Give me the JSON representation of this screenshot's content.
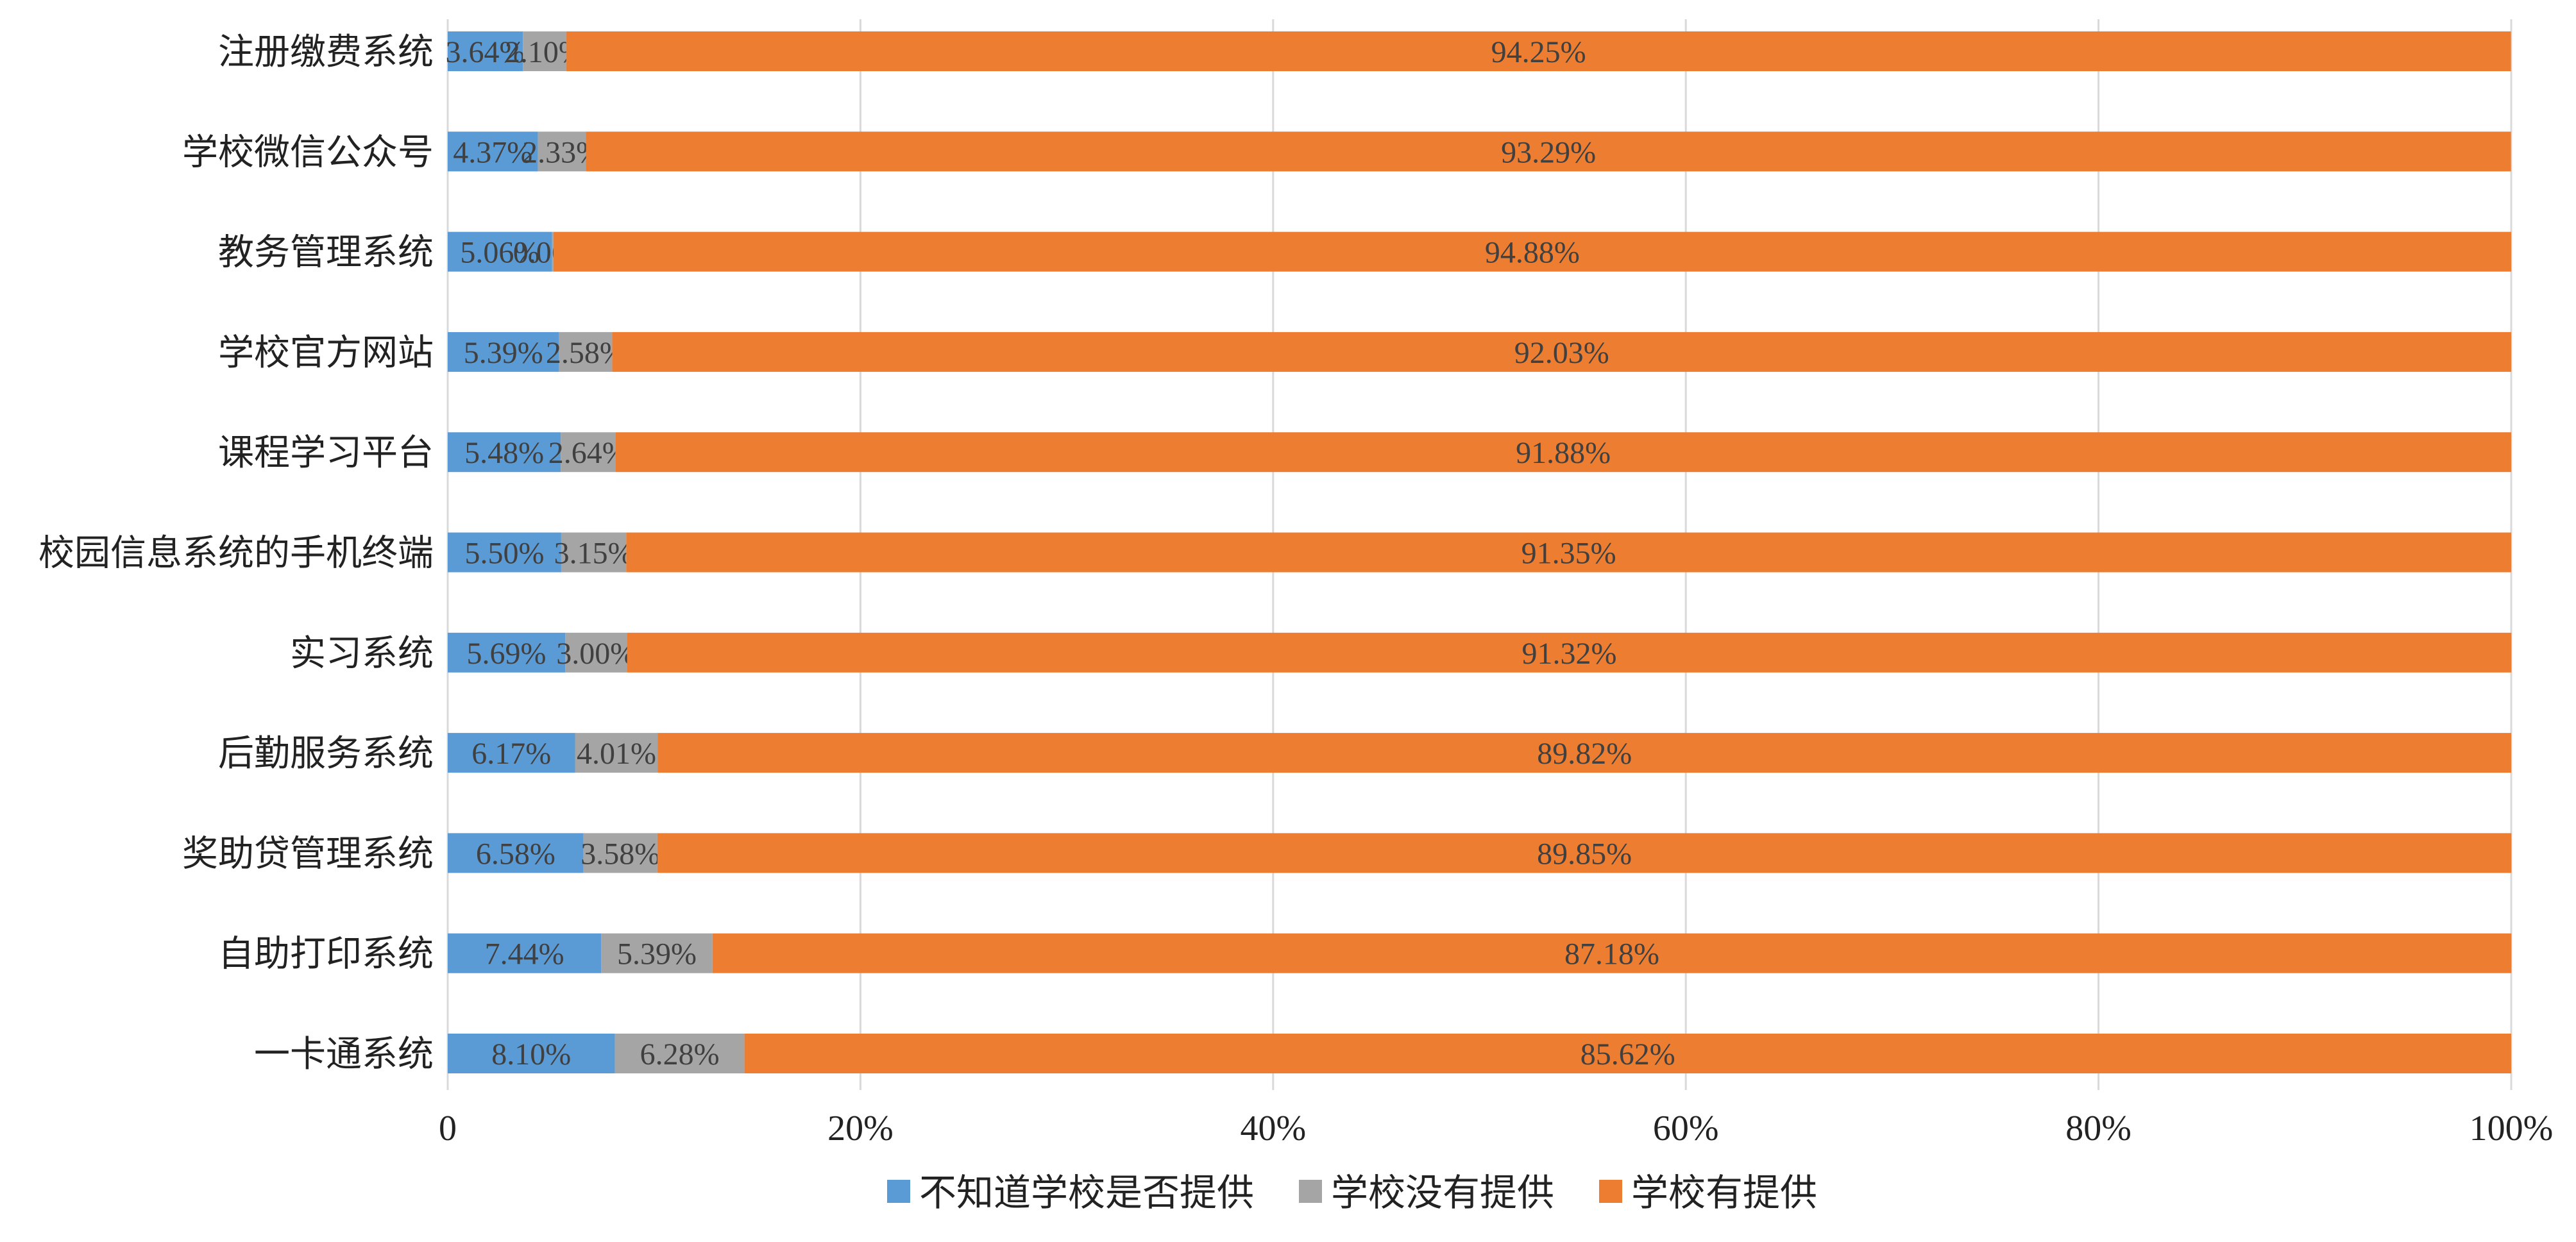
{
  "chart_data": {
    "type": "bar",
    "orientation": "horizontal",
    "stacked": true,
    "title": "",
    "xlabel": "",
    "ylabel": "",
    "xlim": [
      0,
      100
    ],
    "x_ticks": [
      0,
      20,
      40,
      60,
      80,
      100
    ],
    "x_tick_labels": [
      "0",
      "20%",
      "40%",
      "60%",
      "80%",
      "100%"
    ],
    "grid": "vertical",
    "legend": "bottom",
    "categories": [
      "注册缴费系统",
      "学校微信公众号",
      "教务管理系统",
      "学校官方网站",
      "课程学习平台",
      "校园信息系统的手机终端",
      "实习系统",
      "后勤服务系统",
      "奖助贷管理系统",
      "自助打印系统",
      "一卡通系统"
    ],
    "series": [
      {
        "name": "不知道学校是否提供",
        "color": "#5b9bd5",
        "values": [
          3.64,
          4.37,
          5.06,
          5.39,
          5.48,
          5.5,
          5.69,
          6.17,
          6.58,
          7.44,
          8.1
        ],
        "labels": [
          "3.64%",
          "4.37%",
          "5.06%",
          "5.39%",
          "5.48%",
          "5.50%",
          "5.69%",
          "6.17%",
          "6.58%",
          "7.44%",
          "8.10%"
        ]
      },
      {
        "name": "学校没有提供",
        "color": "#a5a5a5",
        "values": [
          2.1,
          2.33,
          0.06,
          2.58,
          2.64,
          3.15,
          3.0,
          4.01,
          3.58,
          5.39,
          6.28
        ],
        "labels": [
          "2.10%",
          "2.33%",
          "0.06%",
          "2.58%",
          "2.64%",
          "3.15%",
          "3.00%",
          "4.01%",
          "3.58%",
          "5.39%",
          "6.28%"
        ]
      },
      {
        "name": "学校有提供",
        "color": "#ed7d31",
        "values": [
          94.25,
          93.29,
          94.88,
          92.03,
          91.88,
          91.35,
          91.32,
          89.82,
          89.85,
          87.18,
          85.62
        ],
        "labels": [
          "94.25%",
          "93.29%",
          "94.88%",
          "92.03%",
          "91.88%",
          "91.35%",
          "91.32%",
          "89.82%",
          "89.85%",
          "87.18%",
          "85.62%"
        ]
      }
    ]
  }
}
